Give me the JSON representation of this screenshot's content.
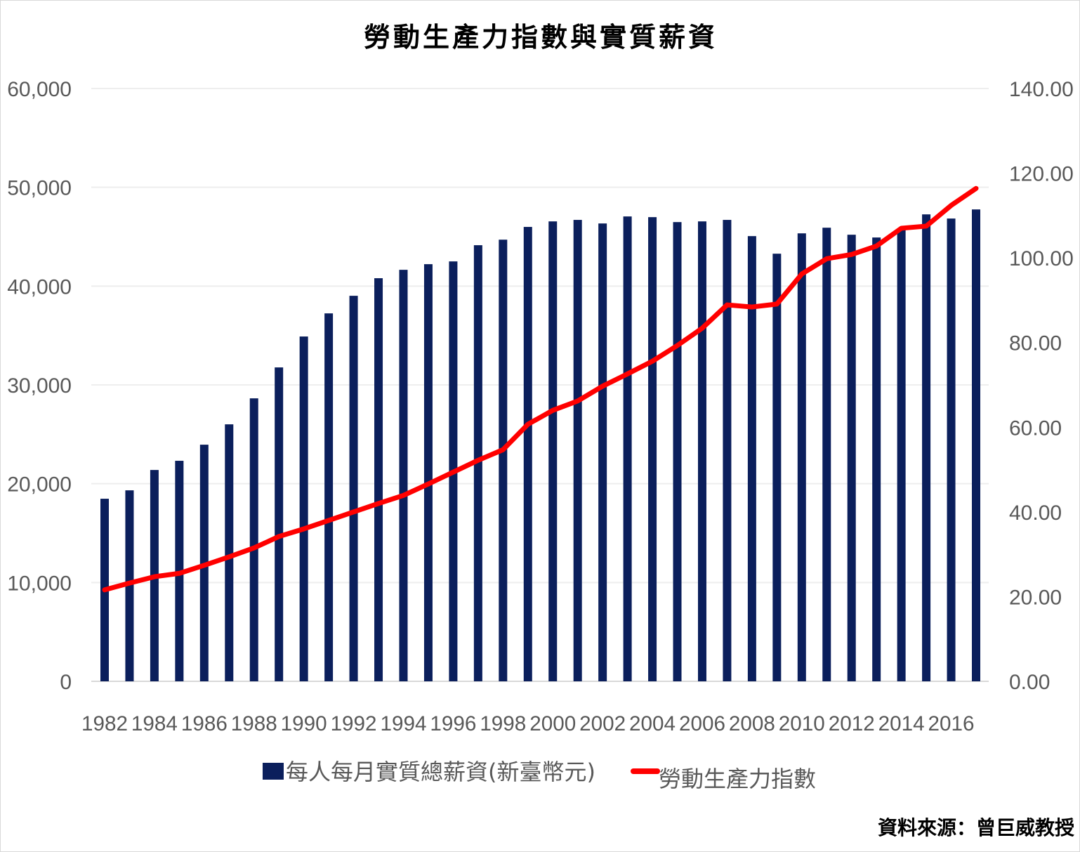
{
  "chart_data": {
    "type": "bar+line",
    "title": "勞動生產力指數與實質薪資",
    "source": "資料來源：曾巨威教授",
    "categories": [
      1982,
      1983,
      1984,
      1985,
      1986,
      1987,
      1988,
      1989,
      1990,
      1991,
      1992,
      1993,
      1994,
      1995,
      1996,
      1997,
      1998,
      1999,
      2000,
      2001,
      2002,
      2003,
      2004,
      2005,
      2006,
      2007,
      2008,
      2009,
      2010,
      2011,
      2012,
      2013,
      2014,
      2015,
      2016,
      2017
    ],
    "x_tick_labels": [
      "1982",
      "1984",
      "1986",
      "1988",
      "1990",
      "1992",
      "1994",
      "1996",
      "1998",
      "2000",
      "2002",
      "2004",
      "2006",
      "2008",
      "2010",
      "2012",
      "2014",
      "2016"
    ],
    "left_axis": {
      "ylim": [
        0,
        60000
      ],
      "ticks": [
        "0",
        "10,000",
        "20,000",
        "30,000",
        "40,000",
        "50,000",
        "60,000"
      ]
    },
    "right_axis": {
      "ylim": [
        0,
        140
      ],
      "ticks": [
        "0.00",
        "20.00",
        "40.00",
        "60.00",
        "80.00",
        "100.00",
        "120.00",
        "140.00"
      ]
    },
    "grid": true,
    "legend_position": "bottom",
    "series": [
      {
        "name": "每人每月實質總薪資(新臺幣元)",
        "type": "bar",
        "axis": "left",
        "color": "#0b1f5c",
        "values": [
          18480,
          19330,
          21390,
          22320,
          23950,
          26010,
          28640,
          31770,
          34900,
          37240,
          39020,
          40800,
          41650,
          42220,
          42500,
          44140,
          44700,
          45990,
          46550,
          46700,
          46340,
          47050,
          46980,
          46480,
          46550,
          46700,
          45060,
          43280,
          45340,
          45910,
          45200,
          44920,
          45770,
          47260,
          46840,
          47760
        ]
      },
      {
        "name": "勞動生產力指數",
        "type": "line",
        "axis": "right",
        "color": "#ff0000",
        "values": [
          21.6,
          23.2,
          24.7,
          25.5,
          27.4,
          29.4,
          31.5,
          34.2,
          36.0,
          38.0,
          40.0,
          42.0,
          43.9,
          46.6,
          49.4,
          52.2,
          54.7,
          60.7,
          64.0,
          66.2,
          69.7,
          72.6,
          75.6,
          79.3,
          83.4,
          88.9,
          88.4,
          89.1,
          96.2,
          99.8,
          100.8,
          102.8,
          107.0,
          107.5,
          112.4,
          116.4
        ]
      }
    ]
  }
}
